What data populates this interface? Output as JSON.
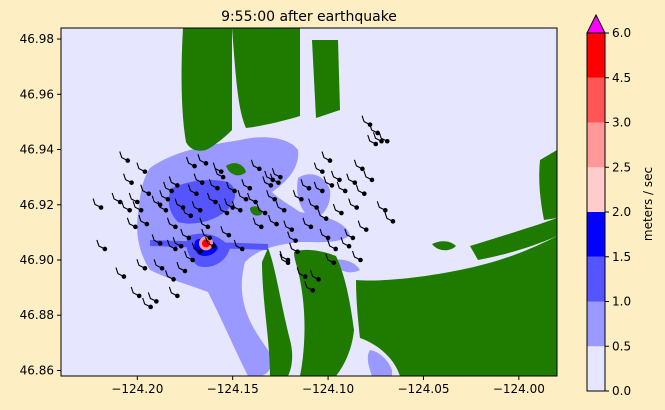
{
  "chart_data": {
    "type": "heatmap",
    "title": "9:55:00 after earthquake",
    "xlabel": "",
    "ylabel": "",
    "xlim": [
      -124.24,
      -123.98
    ],
    "ylim": [
      46.858,
      46.984
    ],
    "x_ticks": [
      -124.2,
      -124.15,
      -124.1,
      -124.05,
      -124.0
    ],
    "x_tick_labels": [
      "−124.20",
      "−124.15",
      "−124.10",
      "−124.05",
      "−124.00"
    ],
    "y_ticks": [
      46.86,
      46.88,
      46.9,
      46.92,
      46.94,
      46.96,
      46.98
    ],
    "y_tick_labels": [
      "46.86",
      "46.88",
      "46.90",
      "46.92",
      "46.94",
      "46.96",
      "46.98"
    ],
    "colorbar": {
      "label": "meters / sec",
      "bounds": [
        0.0,
        0.5,
        1.0,
        1.5,
        2.0,
        2.5,
        3.0,
        4.5,
        6.0
      ],
      "tick_labels": [
        "0.0",
        "0.5",
        "1.0",
        "1.5",
        "2.0",
        "2.5",
        "3.0",
        "4.5",
        "6.0"
      ],
      "colors": [
        "#e6e6ff",
        "#9999ff",
        "#5555ff",
        "#0000ff",
        "#ffcccc",
        "#ff9999",
        "#ff5555",
        "#ff0000"
      ],
      "extend_color": "#ff00ff",
      "extend": "max"
    },
    "land_color": "#1f7a00",
    "water_color": "#e6e6ff",
    "drifters": [
      [
        -124.219,
        46.919
      ],
      [
        -124.217,
        46.904
      ],
      [
        -124.209,
        46.921
      ],
      [
        -124.207,
        46.894
      ],
      [
        -124.204,
        46.918
      ],
      [
        -124.205,
        46.936
      ],
      [
        -124.203,
        46.928
      ],
      [
        -124.201,
        46.912
      ],
      [
        -124.2,
        46.921
      ],
      [
        -124.199,
        46.887
      ],
      [
        -124.198,
        46.918
      ],
      [
        -124.196,
        46.932
      ],
      [
        -124.196,
        46.897
      ],
      [
        -124.195,
        46.913
      ],
      [
        -124.194,
        46.924
      ],
      [
        -124.193,
        46.883
      ],
      [
        -124.19,
        46.885
      ],
      [
        -124.188,
        46.92
      ],
      [
        -124.188,
        46.906
      ],
      [
        -124.187,
        46.897
      ],
      [
        -124.185,
        46.918
      ],
      [
        -124.184,
        46.922
      ],
      [
        -124.182,
        46.925
      ],
      [
        -124.181,
        46.893
      ],
      [
        -124.18,
        46.904
      ],
      [
        -124.18,
        46.912
      ],
      [
        -124.179,
        46.927
      ],
      [
        -124.179,
        46.887
      ],
      [
        -124.177,
        46.905
      ],
      [
        -124.176,
        46.919
      ],
      [
        -124.175,
        46.896
      ],
      [
        -124.173,
        46.908
      ],
      [
        -124.172,
        46.916
      ],
      [
        -124.171,
        46.9
      ],
      [
        -124.17,
        46.934
      ],
      [
        -124.169,
        46.924
      ],
      [
        -124.167,
        46.918
      ],
      [
        -124.167,
        46.903
      ],
      [
        -124.166,
        46.928
      ],
      [
        -124.164,
        46.935
      ],
      [
        -124.163,
        46.912
      ],
      [
        -124.162,
        46.908
      ],
      [
        -124.16,
        46.905
      ],
      [
        -124.159,
        46.921
      ],
      [
        -124.158,
        46.926
      ],
      [
        -124.156,
        46.932
      ],
      [
        -124.155,
        46.93
      ],
      [
        -124.153,
        46.917
      ],
      [
        -124.152,
        46.909
      ],
      [
        -124.15,
        46.919
      ],
      [
        -124.149,
        46.925
      ],
      [
        -124.146,
        46.918
      ],
      [
        -124.145,
        46.904
      ],
      [
        -124.143,
        46.922
      ],
      [
        -124.141,
        46.926
      ],
      [
        -124.138,
        46.921
      ],
      [
        -124.136,
        46.933
      ],
      [
        -124.135,
        46.912
      ],
      [
        -124.133,
        46.917
      ],
      [
        -124.13,
        46.927
      ],
      [
        -124.128,
        46.922
      ],
      [
        -124.127,
        46.913
      ],
      [
        -124.125,
        46.93
      ],
      [
        -124.123,
        46.918
      ],
      [
        -124.121,
        46.9
      ],
      [
        -124.119,
        46.911
      ],
      [
        -124.117,
        46.907
      ],
      [
        -124.116,
        46.903
      ],
      [
        -124.114,
        46.922
      ],
      [
        -124.112,
        46.894
      ],
      [
        -124.11,
        46.926
      ],
      [
        -124.109,
        46.912
      ],
      [
        -124.108,
        46.889
      ],
      [
        -124.106,
        46.919
      ],
      [
        -124.105,
        46.893
      ],
      [
        -124.103,
        46.932
      ],
      [
        -124.103,
        46.925
      ],
      [
        -124.101,
        46.915
      ],
      [
        -124.1,
        46.908
      ],
      [
        -124.099,
        46.936
      ],
      [
        -124.098,
        46.927
      ],
      [
        -124.096,
        46.904
      ],
      [
        -124.094,
        46.929
      ],
      [
        -124.093,
        46.917
      ],
      [
        -124.091,
        46.925
      ],
      [
        -124.089,
        46.905
      ],
      [
        -124.087,
        46.908
      ],
      [
        -124.086,
        46.928
      ],
      [
        -124.085,
        46.919
      ],
      [
        -124.083,
        46.9
      ],
      [
        -124.082,
        46.933
      ],
      [
        -124.081,
        46.924
      ],
      [
        -124.08,
        46.911
      ],
      [
        -124.078,
        46.949
      ],
      [
        -124.077,
        46.929
      ],
      [
        -124.075,
        46.942
      ],
      [
        -124.074,
        46.946
      ],
      [
        -124.072,
        46.943
      ],
      [
        -124.07,
        46.918
      ],
      [
        -124.069,
        46.943
      ],
      [
        -124.066,
        46.914
      ],
      [
        -124.121,
        46.899
      ],
      [
        -124.097,
        46.899
      ],
      [
        -124.126,
        46.928
      ],
      [
        -124.129,
        46.929
      ]
    ],
    "hotspot": [
      -124.164,
      46.906
    ]
  }
}
